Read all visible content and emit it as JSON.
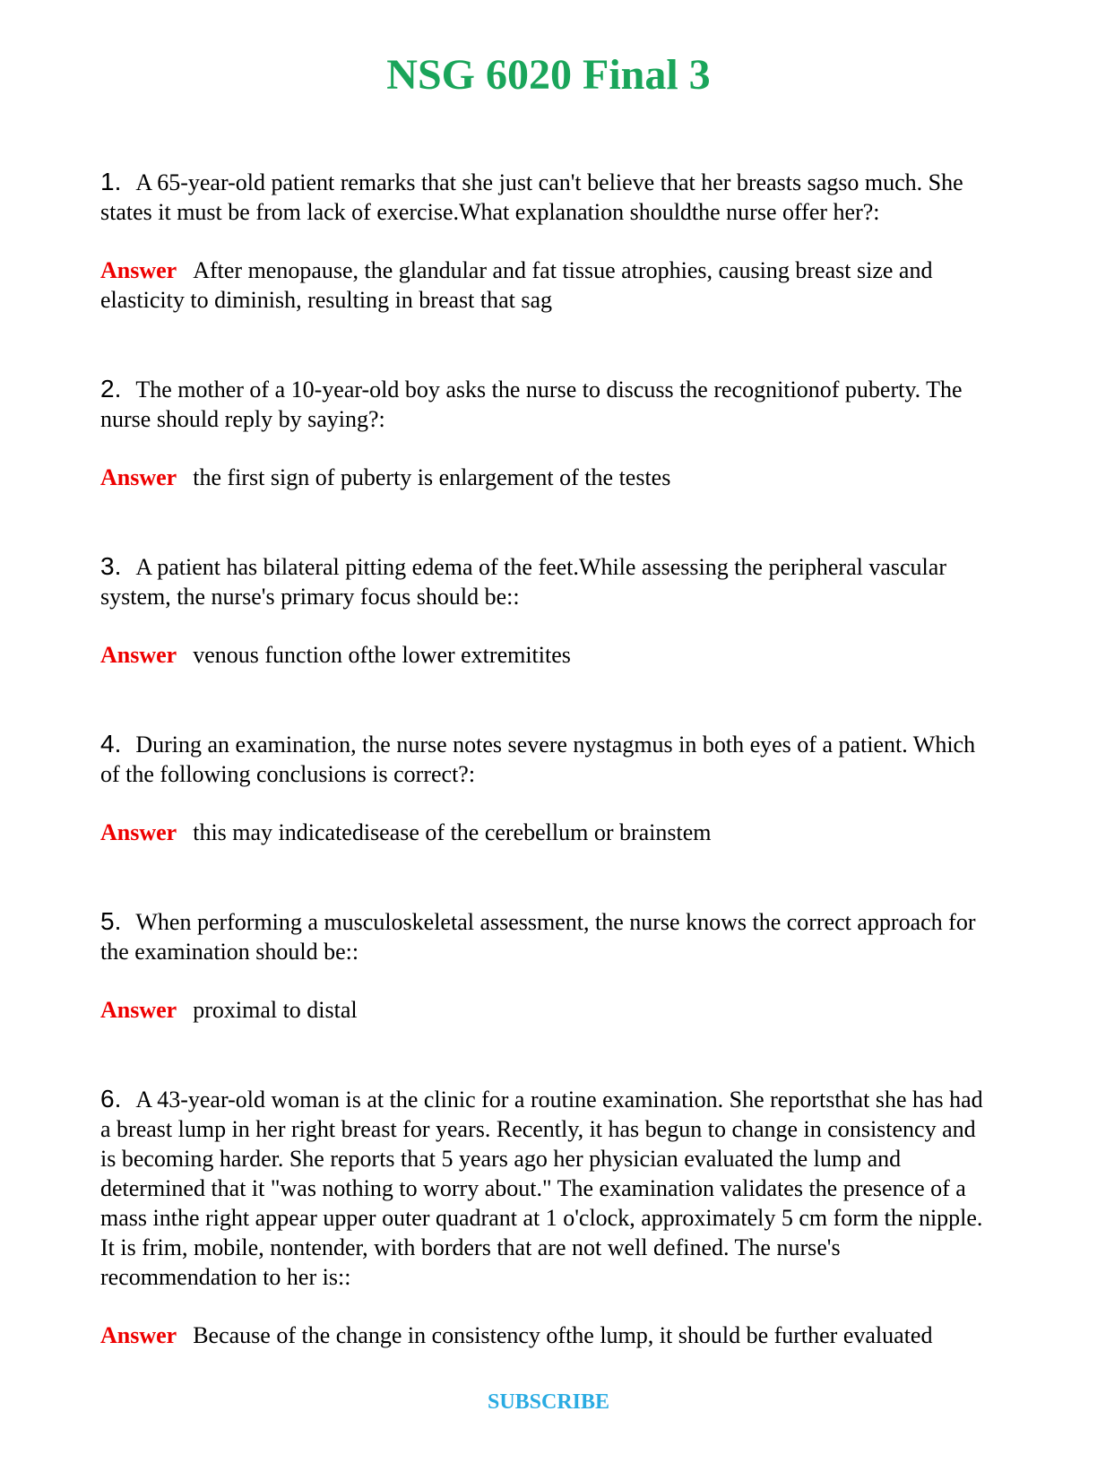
{
  "page": {
    "title": "NSG 6020 Final 3",
    "subscribe_label": "SUBSCRIBE"
  },
  "colors": {
    "title_green": "#1aa55a",
    "answer_red": "#ee0000",
    "subscribe_blue": "#29abe2",
    "body_text": "#000000",
    "background": "#ffffff"
  },
  "answer_label": "Answer",
  "questions": [
    {
      "number": "1.",
      "text": "A 65-year-old patient remarks that she just can't believe that her breasts sagso much. She states it must be from lack of exercise.What explanation shouldthe nurse offer her?:",
      "answer": "After menopause, the glandular and fat tissue atrophies, causing breast size and elasticity to diminish, resulting in breast that sag"
    },
    {
      "number": "2.",
      "text": "The mother of a 10-year-old boy asks the nurse to discuss the recognitionof puberty. The nurse should reply by saying?:",
      "answer": "the first sign of puberty is enlargement of the testes"
    },
    {
      "number": "3.",
      "text": "A patient has bilateral pitting edema of the feet.While assessing the peripheral vascular system, the nurse's primary focus should be::",
      "answer": "venous function ofthe lower extremitites"
    },
    {
      "number": "4.",
      "text": "During an examination, the nurse notes severe nystagmus in both eyes of a patient. Which of the following conclusions is correct?:",
      "answer": "this may indicatedisease of the cerebellum or brainstem"
    },
    {
      "number": "5.",
      "text": "When performing a musculoskeletal assessment, the nurse knows the correct approach for the examination should be::",
      "answer": "proximal to distal"
    },
    {
      "number": "6.",
      "text": "A 43-year-old woman is at the clinic for a routine examination. She reportsthat she has had a breast lump in her right breast for years. Recently, it has begun to change in consistency and is becoming harder. She reports that 5 years ago her physician evaluated the lump and determined that it \"was nothing to worry about.\" The examination validates the presence of a mass inthe right appear upper outer quadrant at 1 o'clock, approximately 5 cm form the nipple. It is frim, mobile, nontender, with borders that are not well defined. The nurse's recommendation to her is::",
      "answer": "Because of the change in consistency ofthe lump, it should be further evaluated"
    }
  ]
}
